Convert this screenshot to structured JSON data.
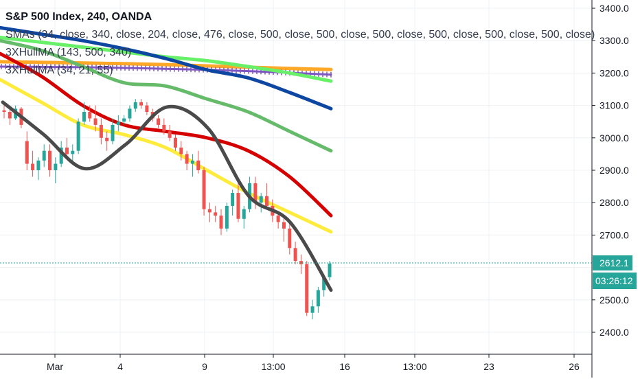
{
  "header": {
    "title": "S&P 500 Index, 240, OANDA",
    "indicators": [
      "SMAs (34, close, 340, close, 204, close, 476, close, 500, close, 500, close, 500, close, 500, close, 500, close, 500, close)",
      "3XHullMA (143, 500, 340)",
      "3XHullMA (34, 21, 55)"
    ]
  },
  "colors": {
    "up": "#26a69a",
    "down": "#ef5350",
    "last_price": "#26a69a",
    "countdown": "#26a69a",
    "ma_blue": "#0d47a1",
    "ma_orange": "#ffa726",
    "ma_green_light": "#69f069",
    "ma_green": "#66bb6a",
    "ma_purple": "#7e57c2",
    "ma_red": "#d50000",
    "ma_yellow": "#ffeb3b",
    "ma_dark": "#4a4a4a",
    "grid": "#eef0f3"
  },
  "price_axis": {
    "ticks": [
      "3400.0",
      "3300.0",
      "3200.0",
      "3100.0",
      "3000.0",
      "2900.0",
      "2800.0",
      "2700.0",
      "2500.0",
      "2400.0"
    ],
    "last_price_label": "2612.1",
    "countdown_label": "03:26:12"
  },
  "time_axis": {
    "labels": [
      "Mar",
      "4",
      "9",
      "13:00",
      "16",
      "13:00",
      "23",
      "26"
    ]
  },
  "chart_data": {
    "type": "candlestick",
    "ylim": [
      2350,
      3440
    ],
    "last_price": 2612.1,
    "ohlc": [
      [
        3085,
        3100,
        3060,
        3080
      ],
      [
        3080,
        3090,
        3040,
        3060
      ],
      [
        3060,
        3100,
        3055,
        3090
      ],
      [
        3090,
        3095,
        3030,
        3040
      ],
      [
        2990,
        3020,
        2900,
        2920
      ],
      [
        2920,
        2960,
        2880,
        2900
      ],
      [
        2900,
        2940,
        2870,
        2930
      ],
      [
        2930,
        2980,
        2910,
        2960
      ],
      [
        2960,
        2980,
        2880,
        2900
      ],
      [
        2900,
        2940,
        2860,
        2920
      ],
      [
        2920,
        2990,
        2910,
        2970
      ],
      [
        2970,
        3000,
        2940,
        2950
      ],
      [
        2950,
        2980,
        2920,
        2960
      ],
      [
        2960,
        3060,
        2950,
        3050
      ],
      [
        3050,
        3110,
        3040,
        3080
      ],
      [
        3080,
        3100,
        3050,
        3060
      ],
      [
        3060,
        3100,
        3020,
        3040
      ],
      [
        3040,
        3060,
        2980,
        3000
      ],
      [
        3000,
        3020,
        2960,
        2990
      ],
      [
        2990,
        3060,
        2980,
        3040
      ],
      [
        3040,
        3070,
        3020,
        3050
      ],
      [
        3050,
        3070,
        3040,
        3060
      ],
      [
        3060,
        3100,
        3050,
        3090
      ],
      [
        3090,
        3120,
        3080,
        3110
      ],
      [
        3110,
        3120,
        3090,
        3100
      ],
      [
        3100,
        3110,
        3070,
        3080
      ],
      [
        3080,
        3090,
        3050,
        3060
      ],
      [
        3060,
        3070,
        3030,
        3040
      ],
      [
        3040,
        3060,
        3010,
        3020
      ],
      [
        3020,
        3040,
        2990,
        3000
      ],
      [
        3000,
        3010,
        2960,
        2970
      ],
      [
        2970,
        2990,
        2930,
        2950
      ],
      [
        2950,
        2960,
        2900,
        2920
      ],
      [
        2920,
        2950,
        2880,
        2930
      ],
      [
        2930,
        2960,
        2890,
        2900
      ],
      [
        2900,
        2910,
        2760,
        2780
      ],
      [
        2780,
        2800,
        2740,
        2770
      ],
      [
        2770,
        2790,
        2740,
        2760
      ],
      [
        2760,
        2780,
        2700,
        2720
      ],
      [
        2720,
        2800,
        2710,
        2790
      ],
      [
        2790,
        2840,
        2760,
        2830
      ],
      [
        2830,
        2860,
        2740,
        2750
      ],
      [
        2750,
        2790,
        2720,
        2780
      ],
      [
        2780,
        2880,
        2770,
        2860
      ],
      [
        2860,
        2880,
        2780,
        2800
      ],
      [
        2800,
        2830,
        2770,
        2820
      ],
      [
        2820,
        2860,
        2780,
        2790
      ],
      [
        2790,
        2810,
        2740,
        2760
      ],
      [
        2760,
        2770,
        2720,
        2740
      ],
      [
        2740,
        2760,
        2680,
        2720
      ],
      [
        2720,
        2740,
        2640,
        2660
      ],
      [
        2660,
        2680,
        2610,
        2620
      ],
      [
        2620,
        2640,
        2580,
        2610
      ],
      [
        2610,
        2620,
        2450,
        2460
      ],
      [
        2460,
        2500,
        2440,
        2480
      ],
      [
        2480,
        2540,
        2460,
        2530
      ],
      [
        2530,
        2580,
        2510,
        2570
      ],
      [
        2570,
        2620,
        2560,
        2612.1
      ]
    ],
    "series": [
      {
        "color_key": "ma_orange",
        "values": [
          3235,
          3233,
          3231,
          3229,
          3226,
          3222,
          3218,
          3214,
          3211
        ]
      },
      {
        "color_key": "ma_purple",
        "values": [
          3220,
          3219,
          3218,
          3216,
          3213,
          3210,
          3206,
          3201,
          3195
        ]
      },
      {
        "color_key": "ma_green_light",
        "values": [
          3310,
          3295,
          3280,
          3265,
          3250,
          3238,
          3220,
          3200,
          3175
        ]
      },
      {
        "color_key": "ma_blue",
        "values": [
          3340,
          3320,
          3300,
          3275,
          3245,
          3210,
          3185,
          3140,
          3090
        ]
      },
      {
        "color_key": "ma_green",
        "values": [
          3300,
          3270,
          3220,
          3170,
          3160,
          3120,
          3080,
          3020,
          2960
        ]
      },
      {
        "color_key": "ma_red",
        "values": [
          3260,
          3190,
          3100,
          3040,
          3020,
          3000,
          2960,
          2880,
          2760
        ]
      },
      {
        "color_key": "ma_yellow",
        "values": [
          3180,
          3110,
          3040,
          3010,
          2970,
          2900,
          2830,
          2770,
          2710
        ]
      },
      {
        "color_key": "ma_dark",
        "values": [
          3110,
          3010,
          2905,
          2980,
          3095,
          3030,
          2820,
          2740,
          2530
        ]
      }
    ]
  }
}
